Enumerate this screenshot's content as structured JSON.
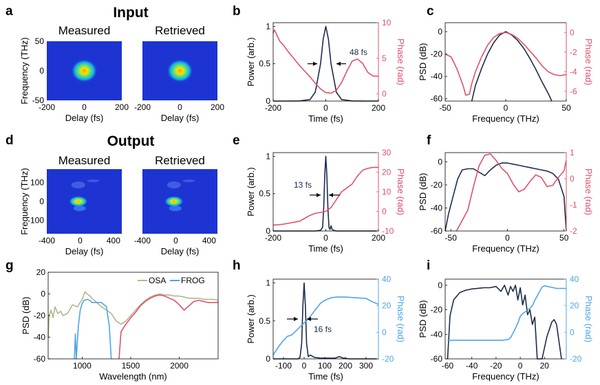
{
  "colors": {
    "navy": "#1b2b4b",
    "red": "#e0506a",
    "blue": "#4da3ea",
    "olive": "#b0b88a",
    "axis": "#000000"
  },
  "chart_data": [
    {
      "id": "a",
      "type": "heatmap",
      "panel_label": "a",
      "heading": "Input",
      "subplots": [
        {
          "title": "Measured"
        },
        {
          "title": "Retrieved"
        }
      ],
      "xlabel": "Delay (fs)",
      "ylabel": "Frequency (THz)",
      "xlim": [
        -200,
        200
      ],
      "ylim": [
        -50,
        50
      ],
      "xticks": [
        "-200",
        "0",
        "200"
      ],
      "yticks": [
        "50",
        "0",
        "-50"
      ]
    },
    {
      "id": "b",
      "type": "line",
      "panel_label": "b",
      "xlabel": "Time (fs)",
      "ylabel": "Power (arb.)",
      "y2label": "Phase (rad)",
      "xlim": [
        -200,
        200
      ],
      "ylim": [
        0,
        1.05
      ],
      "y2lim": [
        -1,
        10
      ],
      "xticks": [
        "-200",
        "0",
        "200"
      ],
      "yticks": [
        "0",
        "0.5",
        "1"
      ],
      "y2ticks": [
        "0",
        "5",
        "10"
      ],
      "annotation": "48 fs",
      "series": [
        {
          "name": "Power",
          "axis": "left",
          "color": "navy",
          "x": [
            -200,
            -150,
            -100,
            -60,
            -40,
            -20,
            -10,
            0,
            10,
            20,
            40,
            60,
            100,
            150,
            200
          ],
          "y": [
            0,
            0,
            0.002,
            0.02,
            0.12,
            0.5,
            0.83,
            1.0,
            0.83,
            0.5,
            0.12,
            0.02,
            0.002,
            0,
            0
          ]
        },
        {
          "name": "Phase",
          "axis": "right",
          "color": "red",
          "x": [
            -200,
            -195,
            -185,
            -175,
            -160,
            -140,
            -120,
            -100,
            -80,
            -60,
            -40,
            -20,
            0,
            20,
            40,
            60,
            80,
            100,
            120,
            140,
            160,
            180,
            200
          ],
          "y": [
            8.5,
            9.0,
            8.2,
            7.4,
            6.8,
            5.8,
            4.9,
            4.0,
            3.2,
            2.4,
            1.5,
            0.7,
            0.2,
            0.1,
            0.5,
            1.6,
            3.2,
            4.6,
            4.9,
            4.3,
            3.0,
            2.5,
            2.5
          ]
        }
      ]
    },
    {
      "id": "c",
      "type": "line",
      "panel_label": "c",
      "xlabel": "Frequency (THz)",
      "ylabel": "PSD (dB)",
      "y2label": "Phase (rad)",
      "xlim": [
        -50,
        50
      ],
      "ylim": [
        -62,
        8
      ],
      "y2lim": [
        -7,
        1
      ],
      "xticks": [
        "-50",
        "0",
        "50"
      ],
      "yticks": [
        "0",
        "-20",
        "-40",
        "-60"
      ],
      "y2ticks": [
        "0",
        "-2",
        "-4",
        "-6"
      ],
      "series": [
        {
          "name": "PSD",
          "axis": "left",
          "color": "navy",
          "x": [
            -28,
            -25,
            -20,
            -15,
            -10,
            -5,
            0,
            5,
            10,
            15,
            20,
            25,
            30,
            35,
            38
          ],
          "y": [
            -62,
            -48,
            -33,
            -20,
            -10,
            -3,
            0,
            -3,
            -8,
            -15,
            -24,
            -34,
            -45,
            -55,
            -62
          ]
        },
        {
          "name": "Phase",
          "axis": "right",
          "color": "red",
          "x": [
            -50,
            -45,
            -40,
            -35,
            -33,
            -30,
            -28,
            -25,
            -20,
            -15,
            -10,
            -5,
            0,
            5,
            10,
            15,
            20,
            25,
            30,
            35,
            40,
            45,
            50
          ],
          "y": [
            -2.2,
            -2.5,
            -3.8,
            -5.5,
            -6.4,
            -6.3,
            -5.2,
            -4.0,
            -2.5,
            -1.3,
            -0.5,
            -0.1,
            0,
            -0.2,
            -0.6,
            -1.2,
            -1.9,
            -2.6,
            -3.4,
            -4.0,
            -4.3,
            -4.4,
            -4.3
          ]
        }
      ]
    },
    {
      "id": "d",
      "type": "heatmap",
      "panel_label": "d",
      "heading": "Output",
      "subplots": [
        {
          "title": "Measured"
        },
        {
          "title": "Retrieved"
        }
      ],
      "xlabel": "Delay (fs)",
      "ylabel": "Frequency (THz)",
      "xlim": [
        -400,
        500
      ],
      "ylim": [
        -170,
        170
      ],
      "xticks": [
        "-400",
        "0",
        "400"
      ],
      "yticks": [
        "100",
        "0",
        "-100"
      ]
    },
    {
      "id": "e",
      "type": "line",
      "panel_label": "e",
      "xlabel": "Time (fs)",
      "ylabel": "Power (arb.)",
      "y2label": "Phase (rad)",
      "xlim": [
        -200,
        200
      ],
      "ylim": [
        0,
        1.05
      ],
      "y2lim": [
        -10,
        30
      ],
      "xticks": [
        "-200",
        "0",
        "200"
      ],
      "yticks": [
        "0",
        "0.5",
        "1"
      ],
      "y2ticks": [
        "-10",
        "0",
        "10",
        "20",
        "30"
      ],
      "annotation": "13 fs",
      "series": [
        {
          "name": "Power",
          "axis": "left",
          "color": "navy",
          "x": [
            -200,
            -40,
            -20,
            -12,
            -8,
            -4,
            0,
            4,
            8,
            12,
            16,
            20,
            24,
            30,
            40,
            200
          ],
          "y": [
            0,
            0,
            0.01,
            0.05,
            0.3,
            0.75,
            1.0,
            0.75,
            0.3,
            0.05,
            0.02,
            0.07,
            0.02,
            0.01,
            0,
            0
          ]
        },
        {
          "name": "Phase",
          "axis": "right",
          "color": "red",
          "x": [
            -200,
            -180,
            -160,
            -140,
            -120,
            -100,
            -80,
            -60,
            -40,
            -20,
            0,
            20,
            40,
            60,
            80,
            100,
            120,
            140,
            160,
            180,
            200
          ],
          "y": [
            -7,
            -6.8,
            -6.5,
            -6,
            -5.5,
            -5,
            -3.5,
            -2,
            -1,
            -0.5,
            0,
            2,
            6,
            10,
            12,
            14,
            18,
            21,
            22,
            22.5,
            22.5
          ]
        }
      ]
    },
    {
      "id": "f",
      "type": "line",
      "panel_label": "f",
      "xlabel": "Frequency (THz)",
      "ylabel": "PSD (dB)",
      "y2label": "Phase (rad)",
      "xlim": [
        -55,
        52
      ],
      "ylim": [
        -60,
        8
      ],
      "y2lim": [
        -2,
        1
      ],
      "xticks": [
        "-50",
        "0",
        "50"
      ],
      "yticks": [
        "0",
        "-20",
        "-40",
        "-60"
      ],
      "y2ticks": [
        "1",
        "0",
        "-1",
        "-2"
      ],
      "series": [
        {
          "name": "PSD",
          "axis": "left",
          "color": "navy",
          "x": [
            -55,
            -52,
            -48,
            -44,
            -40,
            -35,
            -30,
            -25,
            -20,
            -15,
            -10,
            -5,
            0,
            5,
            10,
            15,
            20,
            25,
            30,
            35,
            40,
            45,
            50,
            52
          ],
          "y": [
            -60,
            -45,
            -30,
            -15,
            -7,
            -6,
            -6,
            -9,
            -12,
            -7,
            -3,
            -1,
            -1,
            -2,
            -3,
            -4,
            -5,
            -6,
            -7,
            -8,
            -10,
            -15,
            -30,
            -60
          ]
        },
        {
          "name": "Phase",
          "axis": "right",
          "color": "red",
          "x": [
            -45,
            -40,
            -35,
            -30,
            -25,
            -20,
            -15,
            -10,
            -5,
            0,
            5,
            10,
            15,
            20,
            25,
            30,
            35,
            40,
            45,
            50,
            52
          ],
          "y": [
            -2,
            -1.6,
            -1.2,
            -0.3,
            0.5,
            0.9,
            0.95,
            0.7,
            0.4,
            0.2,
            -0.2,
            -0.5,
            -0.4,
            -0.1,
            0.15,
            0.05,
            -0.3,
            -0.25,
            0.05,
            0.3,
            0.7
          ]
        }
      ]
    },
    {
      "id": "g",
      "type": "line",
      "panel_label": "g",
      "xlabel": "Wavelength (nm)",
      "ylabel": "PSD (dB)",
      "xlim": [
        650,
        2400
      ],
      "ylim": [
        -60,
        20
      ],
      "xticks": [
        "1000",
        "1500",
        "2000"
      ],
      "yticks": [
        "20",
        "0",
        "-20",
        "-40",
        "-60"
      ],
      "legend": [
        "OSA",
        "FROG"
      ],
      "series": [
        {
          "name": "OSA",
          "axis": "left",
          "color": "olive",
          "x": [
            650,
            660,
            680,
            700,
            720,
            750,
            780,
            800,
            850,
            900,
            950,
            1000,
            1030,
            1050,
            1080,
            1100,
            1150,
            1200,
            1250,
            1300,
            1350,
            1400,
            1450,
            1500,
            1550,
            1600,
            1650,
            1700,
            1750,
            1800,
            1850,
            1900,
            1950,
            2000,
            2050,
            2100,
            2150,
            2200,
            2250,
            2300,
            2350,
            2400
          ],
          "y": [
            -40,
            -20,
            -15,
            -22,
            -12,
            -18,
            -16,
            -20,
            -18,
            -10,
            -12,
            -5,
            2,
            0,
            -2,
            -4,
            -8,
            -12,
            -15,
            -18,
            -25,
            -28,
            -25,
            -20,
            -15,
            -10,
            -6,
            -3,
            -1,
            0,
            -1,
            -1,
            -2,
            -2,
            -3,
            -4,
            -4,
            -4,
            -5,
            -5,
            -5,
            -6
          ]
        },
        {
          "name": "FROG",
          "axis": "left",
          "color": "blue",
          "x": [
            920,
            930,
            940,
            960,
            980,
            1000,
            1020,
            1050,
            1080,
            1100,
            1150,
            1200,
            1250,
            1280,
            1300
          ],
          "y": [
            -60,
            -37,
            -60,
            -30,
            -15,
            -9,
            -6,
            -5,
            -6,
            -8,
            -8,
            -8,
            -12,
            -30,
            -60
          ]
        },
        {
          "name": "FROG-red",
          "axis": "left",
          "color": "red",
          "x": [
            1380,
            1400,
            1450,
            1500,
            1550,
            1600,
            1650,
            1700,
            1750,
            1800,
            1850,
            1900,
            1950,
            2000,
            2050,
            2100,
            2150,
            2200,
            2250,
            2300,
            2350,
            2400
          ],
          "y": [
            -60,
            -35,
            -28,
            -22,
            -17,
            -11,
            -7,
            -4,
            -2,
            -1,
            -2,
            -4,
            -6,
            -10,
            -15,
            -11,
            -7,
            -6,
            -7,
            -8,
            -8,
            -8
          ]
        }
      ]
    },
    {
      "id": "h",
      "type": "line",
      "panel_label": "h",
      "xlabel": "Time (fs)",
      "ylabel": "Power (arb.)",
      "y2label": "Phase (rad)",
      "xlim": [
        -150,
        360
      ],
      "ylim": [
        0,
        1.05
      ],
      "y2lim": [
        -20,
        40
      ],
      "xticks": [
        "-100",
        "0",
        "100",
        "200",
        "300"
      ],
      "yticks": [
        "0",
        "0.5",
        "1"
      ],
      "y2ticks": [
        "-20",
        "0",
        "20",
        "40"
      ],
      "annotation": "16 fs",
      "series": [
        {
          "name": "Power",
          "axis": "left",
          "color": "navy",
          "x": [
            -150,
            -30,
            -20,
            -12,
            -6,
            0,
            6,
            12,
            20,
            30,
            50,
            80,
            110,
            150,
            170,
            190,
            220,
            360
          ],
          "y": [
            0,
            0,
            0.02,
            0.2,
            0.7,
            1.0,
            0.7,
            0.2,
            0.03,
            0.05,
            0.02,
            0.01,
            0.01,
            0.01,
            0.03,
            0.01,
            0,
            0
          ]
        },
        {
          "name": "Phase",
          "axis": "right",
          "color": "blue",
          "x": [
            -150,
            -120,
            -100,
            -80,
            -60,
            -40,
            -20,
            0,
            20,
            40,
            60,
            80,
            100,
            130,
            160,
            200,
            250,
            300,
            330,
            360
          ],
          "y": [
            -17,
            -10,
            -6,
            -3,
            -2,
            1,
            4,
            7,
            10,
            14,
            18,
            22,
            24,
            26,
            26.5,
            26.5,
            26,
            25.5,
            23,
            21
          ]
        }
      ]
    },
    {
      "id": "i",
      "type": "line",
      "panel_label": "i",
      "xlabel": "Frequency (THz)",
      "ylabel": "PSD (dB)",
      "y2label": "Phase (rad)",
      "xlim": [
        -62,
        38
      ],
      "ylim": [
        -60,
        5
      ],
      "y2lim": [
        -20,
        40
      ],
      "xticks": [
        "-60",
        "-40",
        "-20",
        "0",
        "20"
      ],
      "yticks": [
        "0",
        "-20",
        "-40",
        "-60"
      ],
      "y2ticks": [
        "40",
        "20",
        "0",
        "-20"
      ],
      "series": [
        {
          "name": "PSD",
          "axis": "left",
          "color": "navy",
          "x": [
            -60,
            -58,
            -55,
            -50,
            -45,
            -40,
            -35,
            -30,
            -25,
            -20,
            -16,
            -13,
            -10,
            -8,
            -6,
            -4,
            -2,
            0,
            2,
            4,
            6,
            8,
            10,
            12,
            14,
            18,
            22,
            26,
            28,
            30,
            34
          ],
          "y": [
            -60,
            -25,
            -12,
            -6,
            -4,
            -3,
            -2.5,
            -2,
            -2,
            -1,
            -5,
            0,
            -8,
            -1,
            -5,
            0,
            -12,
            -2,
            -16,
            -8,
            -24,
            -20,
            -32,
            -26,
            -60,
            -60,
            -42,
            -30,
            -28,
            -32,
            -60
          ]
        },
        {
          "name": "Phase",
          "axis": "right",
          "color": "blue",
          "x": [
            -60,
            -50,
            -40,
            -30,
            -20,
            -15,
            -10,
            -8,
            -5,
            -2,
            0,
            2,
            5,
            8,
            10,
            12,
            15,
            18,
            20,
            25,
            30,
            35,
            38
          ],
          "y": [
            -6,
            -6,
            -6,
            -6,
            -6,
            -6,
            -5.5,
            -4,
            1,
            7,
            12,
            14,
            16,
            18,
            20,
            24,
            29,
            34,
            35,
            34,
            33,
            33,
            33
          ]
        }
      ]
    }
  ]
}
